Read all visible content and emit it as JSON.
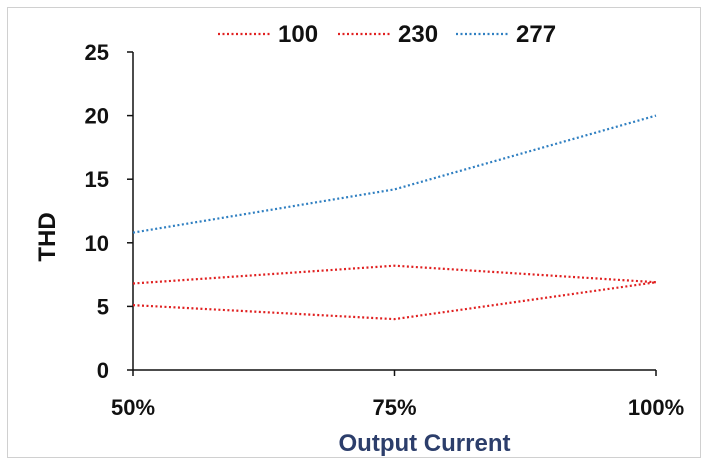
{
  "chart_data": {
    "type": "line",
    "categories": [
      "50%",
      "75%",
      "100%"
    ],
    "series": [
      {
        "name": "100",
        "values": [
          5.1,
          4.0,
          6.9
        ],
        "color": "#e02020",
        "style": "dotted"
      },
      {
        "name": "230",
        "values": [
          6.8,
          8.2,
          6.9
        ],
        "color": "#e02020",
        "style": "dotted"
      },
      {
        "name": "277",
        "values": [
          10.8,
          14.2,
          20.0
        ],
        "color": "#2f7fc1",
        "style": "dotted"
      }
    ],
    "xlabel": "Output Current",
    "ylabel": "THD",
    "ylim": [
      0,
      25
    ],
    "yticks": [
      "0",
      "5",
      "10",
      "15",
      "20",
      "25"
    ],
    "grid": false,
    "legend": "top",
    "xlabel_color": "#2c3e6b",
    "ylabel_color": "#111111"
  }
}
